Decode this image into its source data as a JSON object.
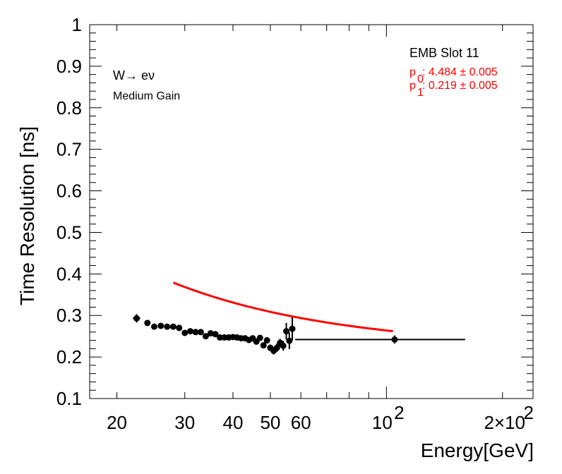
{
  "chart_data": {
    "type": "scatter",
    "title": "",
    "xlabel": "Energy[GeV]",
    "ylabel": "Time Resolution [ns]",
    "xscale": "log",
    "xlim": [
      17,
      240
    ],
    "ylim": [
      0.1,
      1.0
    ],
    "x_tick_labels": [
      {
        "value": 20,
        "label": "20"
      },
      {
        "value": 30,
        "label": "30"
      },
      {
        "value": 40,
        "label": "40"
      },
      {
        "value": 50,
        "label": "50"
      },
      {
        "value": 60,
        "label": "60"
      },
      {
        "value": 100,
        "label": "10",
        "sup": "2"
      },
      {
        "value": 200,
        "label": "2×10",
        "sup": "2"
      }
    ],
    "y_tick_labels": [
      "0.1",
      "0.2",
      "0.3",
      "0.4",
      "0.5",
      "0.6",
      "0.7",
      "0.8",
      "0.9",
      "1"
    ],
    "annotations": {
      "process": "W→ eν",
      "gain": "Medium Gain",
      "slot": "EMB Slot 11",
      "p0_label": "p",
      "p0_sub": "0",
      "p0_value": ": 4.484 ± 0.005",
      "p1_label": "p",
      "p1_sub": "1",
      "p1_value": ": 0.219 ± 0.005"
    },
    "series": [
      {
        "kind": "data-points",
        "color": "#000000",
        "points": [
          {
            "x": 22.5,
            "y": 0.293,
            "yerr": 0.01,
            "xerr": [
              22.0,
              23.0
            ]
          },
          {
            "x": 24.0,
            "y": 0.282,
            "yerr": 0.006
          },
          {
            "x": 25.0,
            "y": 0.273,
            "yerr": 0.005
          },
          {
            "x": 26.0,
            "y": 0.275,
            "yerr": 0.005
          },
          {
            "x": 27.0,
            "y": 0.273,
            "yerr": 0.005
          },
          {
            "x": 28.0,
            "y": 0.273,
            "yerr": 0.005
          },
          {
            "x": 29.0,
            "y": 0.27,
            "yerr": 0.005
          },
          {
            "x": 30.0,
            "y": 0.258,
            "yerr": 0.005
          },
          {
            "x": 31.0,
            "y": 0.262,
            "yerr": 0.005
          },
          {
            "x": 32.0,
            "y": 0.26,
            "yerr": 0.005
          },
          {
            "x": 33.0,
            "y": 0.26,
            "yerr": 0.005
          },
          {
            "x": 34.0,
            "y": 0.25,
            "yerr": 0.005
          },
          {
            "x": 35.0,
            "y": 0.257,
            "yerr": 0.005
          },
          {
            "x": 36.0,
            "y": 0.255,
            "yerr": 0.005
          },
          {
            "x": 37.0,
            "y": 0.247,
            "yerr": 0.005
          },
          {
            "x": 38.0,
            "y": 0.247,
            "yerr": 0.005
          },
          {
            "x": 39.0,
            "y": 0.247,
            "yerr": 0.005
          },
          {
            "x": 40.0,
            "y": 0.248,
            "yerr": 0.005
          },
          {
            "x": 41.0,
            "y": 0.247,
            "yerr": 0.005
          },
          {
            "x": 42.0,
            "y": 0.245,
            "yerr": 0.005
          },
          {
            "x": 43.0,
            "y": 0.245,
            "yerr": 0.005
          },
          {
            "x": 44.0,
            "y": 0.241,
            "yerr": 0.005
          },
          {
            "x": 45.0,
            "y": 0.245,
            "yerr": 0.005
          },
          {
            "x": 46.0,
            "y": 0.237,
            "yerr": 0.006
          },
          {
            "x": 47.0,
            "y": 0.246,
            "yerr": 0.006
          },
          {
            "x": 48.0,
            "y": 0.228,
            "yerr": 0.007
          },
          {
            "x": 49.0,
            "y": 0.24,
            "yerr": 0.007
          },
          {
            "x": 50.0,
            "y": 0.222,
            "yerr": 0.008
          },
          {
            "x": 51.0,
            "y": 0.215,
            "yerr": 0.009
          },
          {
            "x": 52.0,
            "y": 0.222,
            "yerr": 0.01
          },
          {
            "x": 53.0,
            "y": 0.234,
            "yerr": 0.01
          },
          {
            "x": 54.0,
            "y": 0.227,
            "yerr": 0.012
          },
          {
            "x": 55.0,
            "y": 0.262,
            "yerr": 0.02
          },
          {
            "x": 56.0,
            "y": 0.239,
            "yerr": 0.02
          },
          {
            "x": 57.0,
            "y": 0.268,
            "yerr": 0.028
          },
          {
            "x": 105.0,
            "y": 0.242,
            "yerr": 0.01,
            "xerr": [
              58.0,
              160.0
            ]
          }
        ]
      },
      {
        "kind": "fit",
        "color": "#ff0000",
        "x_range": [
          28,
          104
        ]
      }
    ]
  }
}
